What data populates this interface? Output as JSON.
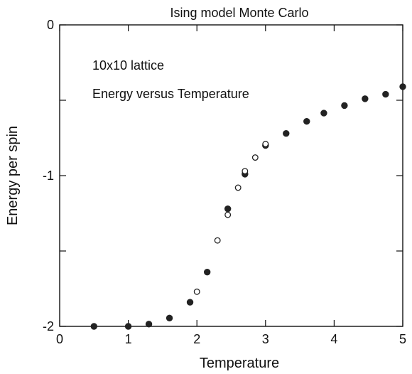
{
  "chart_data": {
    "type": "scatter",
    "title": "Ising model  Monte Carlo",
    "xlabel": "Temperature",
    "ylabel": "Energy per spin",
    "xlim": [
      0,
      5
    ],
    "ylim": [
      -2,
      0
    ],
    "x_ticks": [
      0,
      1,
      2,
      3,
      4,
      5
    ],
    "x_tick_labels": [
      "0",
      "1",
      "2",
      "3",
      "4",
      "5"
    ],
    "y_ticks": [
      -2,
      -1.5,
      -1,
      -0.5,
      0
    ],
    "y_tick_labels": [
      "-2",
      "",
      "-1",
      "",
      "0"
    ],
    "grid": false,
    "annotations": [
      "10x10 lattice",
      "Energy versus Temperature"
    ],
    "colors": {
      "axis": "#111111",
      "marker": "#222222",
      "background": "#ffffff"
    },
    "series": [
      {
        "marker": "filled",
        "x": [
          0.5,
          1.0,
          1.3,
          1.6,
          1.9,
          2.15,
          2.45,
          2.7,
          3.0,
          3.3,
          3.6,
          3.85,
          4.15,
          4.45,
          4.75,
          5.0
        ],
        "y": [
          -2.0,
          -2.0,
          -1.985,
          -1.945,
          -1.84,
          -1.64,
          -1.22,
          -0.99,
          -0.8,
          -0.72,
          -0.64,
          -0.585,
          -0.535,
          -0.49,
          -0.46,
          -0.41
        ]
      },
      {
        "marker": "open",
        "x": [
          2.0,
          2.3,
          2.45,
          2.6,
          2.7,
          2.85,
          3.0
        ],
        "y": [
          -1.77,
          -1.43,
          -1.26,
          -1.08,
          -0.97,
          -0.88,
          -0.79
        ]
      }
    ]
  }
}
